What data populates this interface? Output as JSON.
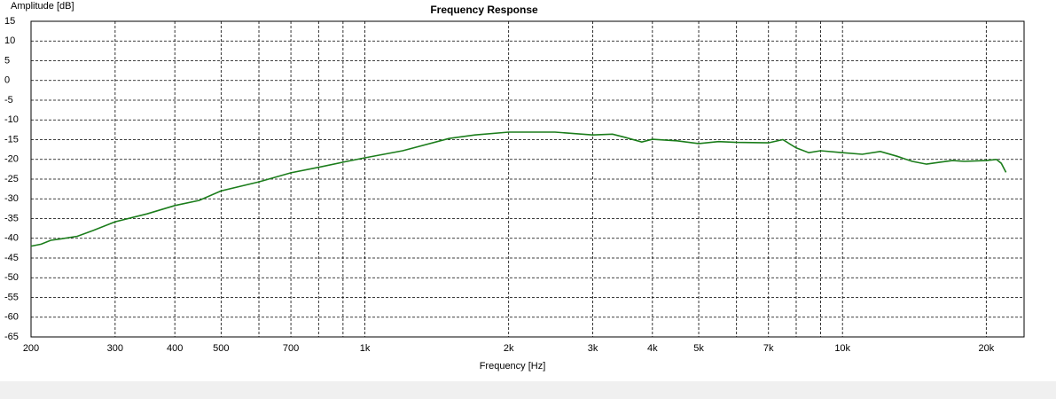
{
  "chart_data": {
    "type": "line",
    "title": "Frequency Response",
    "xlabel": "Frequency [Hz]",
    "ylabel": "Amplitude [dB]",
    "xscale": "log",
    "grid": true,
    "xlim": [
      200,
      24000
    ],
    "ylim": [
      -65,
      15
    ],
    "xticks": [
      200,
      300,
      400,
      500,
      700,
      {
        "value": 1000,
        "label": "1k"
      },
      {
        "value": 2000,
        "label": "2k"
      },
      {
        "value": 3000,
        "label": "3k"
      },
      {
        "value": 4000,
        "label": "4k"
      },
      {
        "value": 5000,
        "label": "5k"
      },
      {
        "value": 7000,
        "label": "7k"
      },
      {
        "value": 10000,
        "label": "10k"
      },
      {
        "value": 20000,
        "label": "20k"
      }
    ],
    "xminor": [
      600,
      800,
      900,
      6000,
      8000,
      9000
    ],
    "yticks": [
      15,
      10,
      5,
      0,
      -5,
      -10,
      -15,
      -20,
      -25,
      -30,
      -35,
      -40,
      -45,
      -50,
      -55,
      -60,
      -65
    ],
    "series": [
      {
        "color": "#1b7d1b",
        "x": [
          200,
          210,
          220,
          230,
          250,
          270,
          300,
          350,
          400,
          450,
          500,
          600,
          700,
          800,
          900,
          1000,
          1200,
          1500,
          1700,
          2000,
          2500,
          3000,
          3300,
          3500,
          3800,
          4000,
          4500,
          5000,
          5500,
          6000,
          7000,
          7500,
          8000,
          8500,
          9000,
          10000,
          11000,
          12000,
          13000,
          14000,
          15000,
          16000,
          17000,
          18000,
          20000,
          21000,
          21500,
          22000
        ],
        "values": [
          -42,
          -41.5,
          -40.5,
          -40.2,
          -39.5,
          -38,
          -35.8,
          -33.8,
          -31.7,
          -30.4,
          -28,
          -25.7,
          -23.4,
          -22,
          -20.7,
          -19.6,
          -17.8,
          -14.7,
          -13.8,
          -13.1,
          -13.1,
          -13.8,
          -13.6,
          -14.4,
          -15.6,
          -14.9,
          -15.3,
          -16,
          -15.5,
          -15.7,
          -15.8,
          -15,
          -17.1,
          -18.3,
          -17.8,
          -18.3,
          -18.7,
          -18,
          -19.2,
          -20.5,
          -21.2,
          -20.7,
          -20.3,
          -20.5,
          -20.3,
          -20,
          -21,
          -23.3
        ]
      }
    ]
  }
}
